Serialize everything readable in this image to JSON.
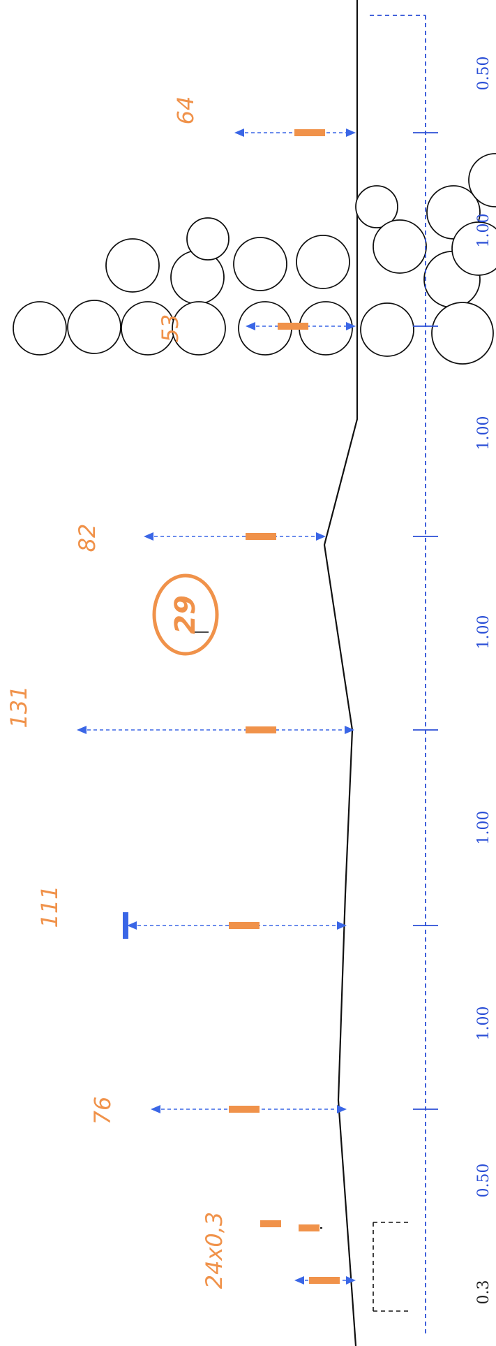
{
  "segment_widths": [
    "0.50",
    "1.00",
    "1.00",
    "1.00",
    "1.00",
    "1.00",
    "0.50",
    "0.3"
  ],
  "heights": [
    "64",
    "53",
    "82",
    "131",
    "111",
    "76"
  ],
  "stone_spec": "24x0,3",
  "detail_number": "29",
  "colors": {
    "dimension_lines": "#2b4fd6",
    "annotations": "#f0924a",
    "outline": "#111111"
  }
}
